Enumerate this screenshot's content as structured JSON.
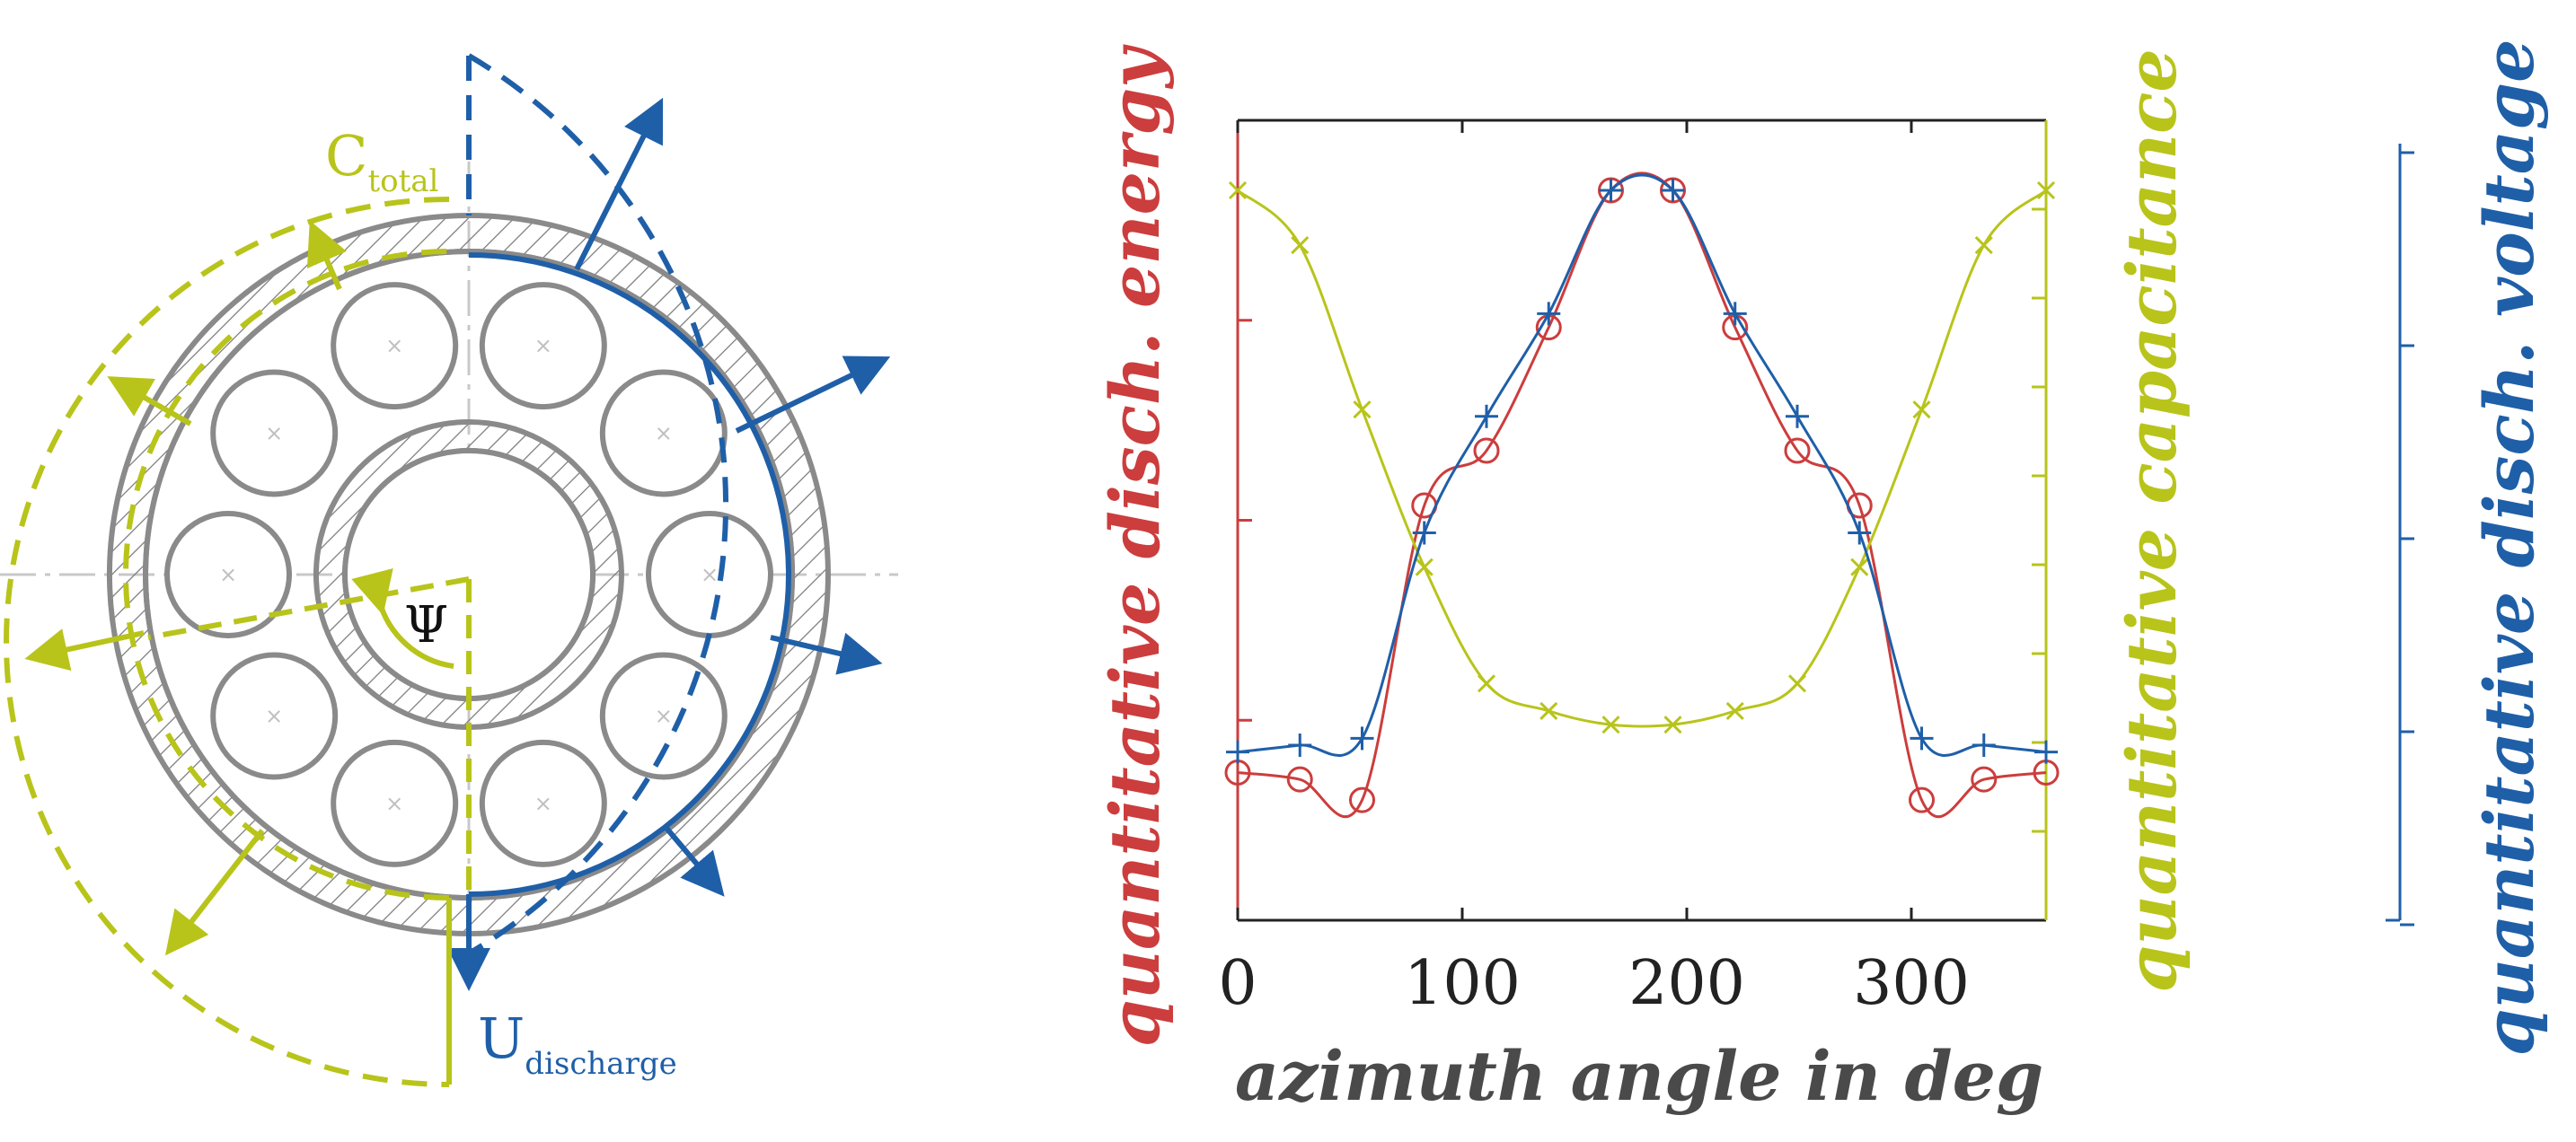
{
  "colors": {
    "energy": "#cc3d3d",
    "capacitance": "#b8c41a",
    "voltage": "#1f5fa8",
    "gray": "#8a8a8a",
    "dark_gray": "#4a4a4a"
  },
  "diagram": {
    "c_total_label": "C",
    "c_total_sub": "total",
    "psi_label": "Ψ",
    "u_label": "U",
    "u_sub": "discharge"
  },
  "chart_data": {
    "type": "line",
    "title": "",
    "xlabel": "azimuth angle in deg",
    "ylabel_left": "quantitative disch. energy",
    "ylabel_middle": "quantitative capacitance",
    "ylabel_right": "quantitative disch. voltage",
    "xlim": [
      0,
      360
    ],
    "ylim": [
      0,
      1
    ],
    "xticks": [
      0,
      100,
      200,
      300
    ],
    "grid": false,
    "series": [
      {
        "name": "quantitative disch. energy",
        "marker": "circle",
        "color": "#cc3d3d",
        "x": [
          0,
          27.7,
          55.4,
          83.1,
          110.8,
          138.5,
          166.2,
          193.8,
          221.5,
          249.2,
          276.9,
          304.6,
          332.3,
          360
        ],
        "y": [
          0.15,
          0.14,
          0.11,
          0.54,
          0.62,
          0.8,
          1.0,
          1.0,
          0.8,
          0.62,
          0.54,
          0.11,
          0.14,
          0.15
        ]
      },
      {
        "name": "quantitative capacitance",
        "marker": "x",
        "color": "#b8c41a",
        "x": [
          0,
          27.7,
          55.4,
          83.1,
          110.8,
          138.5,
          166.2,
          193.8,
          221.5,
          249.2,
          276.9,
          304.6,
          332.3,
          360
        ],
        "y": [
          1.0,
          0.92,
          0.68,
          0.45,
          0.28,
          0.24,
          0.22,
          0.22,
          0.24,
          0.28,
          0.45,
          0.68,
          0.92,
          1.0
        ]
      },
      {
        "name": "quantitative disch. voltage",
        "marker": "plus",
        "color": "#1f5fa8",
        "x": [
          0,
          27.7,
          55.4,
          83.1,
          110.8,
          138.5,
          166.2,
          193.8,
          221.5,
          249.2,
          276.9,
          304.6,
          332.3,
          360
        ],
        "y": [
          0.18,
          0.19,
          0.2,
          0.5,
          0.67,
          0.82,
          1.0,
          1.0,
          0.82,
          0.67,
          0.5,
          0.2,
          0.19,
          0.18
        ]
      }
    ]
  }
}
